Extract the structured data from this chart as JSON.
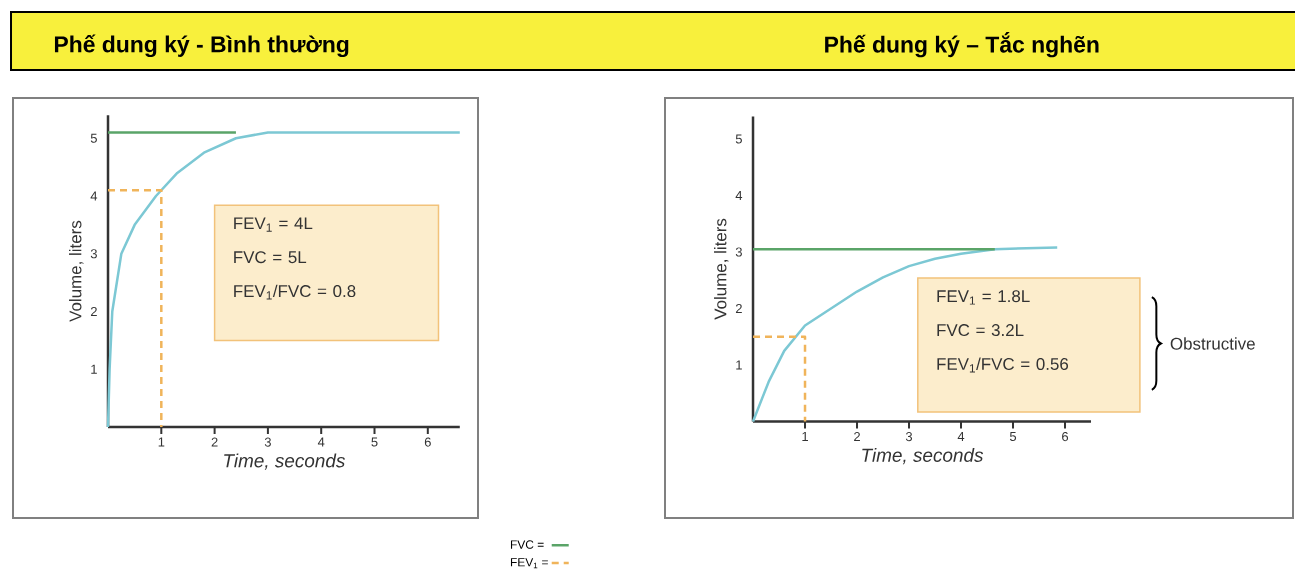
{
  "chart_data": [
    {
      "type": "line",
      "title": "Phế dung ký - Bình thường",
      "xlabel": "Time, seconds",
      "ylabel": "Volume, liters",
      "xlim": [
        0,
        6.6
      ],
      "ylim": [
        0,
        5.4
      ],
      "xticks": [
        1,
        2,
        3,
        4,
        5,
        6
      ],
      "yticks": [
        1,
        2,
        3,
        4,
        5
      ],
      "marker": "none",
      "legend": "bottom",
      "series": [
        {
          "color": "#7cc8d4",
          "x": [
            0,
            0.03,
            0.08,
            0.25,
            0.5,
            0.9,
            1.3,
            1.8,
            2.4,
            3,
            4,
            6.6
          ],
          "values": [
            0,
            1,
            2,
            3,
            3.5,
            4.0,
            4.4,
            4.75,
            5.0,
            5.1,
            5.1,
            5.1
          ]
        },
        {
          "name": "FVC =",
          "color": "#5aa468",
          "x": [
            0,
            2.4
          ],
          "values": [
            5.1,
            5.1
          ]
        },
        {
          "name": "FEV$_{1}$ =",
          "color": "#f0b45a",
          "line_style": "dashed",
          "x": [
            0,
            1,
            1
          ],
          "values": [
            4.1,
            4.1,
            0
          ]
        }
      ],
      "annotations": [
        "FEV$_{1}$ = 4L",
        "FVC = 5L",
        "FEV$_{1}$/FVC = 0.8"
      ]
    },
    {
      "type": "line",
      "title": "Phế dung ký – Tắc nghẽn",
      "xlabel": "Time, seconds",
      "ylabel": "Volume, liters",
      "xlim": [
        0,
        6.5
      ],
      "ylim": [
        0,
        5.4
      ],
      "xticks": [
        1,
        2,
        3,
        4,
        5,
        6
      ],
      "yticks": [
        1,
        2,
        3,
        4,
        5
      ],
      "marker": "none",
      "series": [
        {
          "color": "#7cc8d4",
          "x": [
            0,
            0.3,
            0.6,
            1,
            1.5,
            2,
            2.5,
            3,
            3.5,
            4,
            4.65,
            5.85
          ],
          "values": [
            0,
            0.7,
            1.25,
            1.7,
            2.0,
            2.3,
            2.55,
            2.75,
            2.88,
            2.97,
            3.05,
            3.08
          ]
        },
        {
          "color": "#5aa468",
          "x": [
            0,
            4.65
          ],
          "values": [
            3.05,
            3.05
          ]
        },
        {
          "color": "#f0b45a",
          "line_style": "dashed",
          "x": [
            0,
            1,
            1
          ],
          "values": [
            1.5,
            1.5,
            0
          ]
        }
      ],
      "annotations": [
        "FEV$_{1}$ = 1.8L",
        "FVC = 3.2L",
        "FEV$_{1}$/FVC = 0.56",
        "Obstructive"
      ]
    }
  ]
}
